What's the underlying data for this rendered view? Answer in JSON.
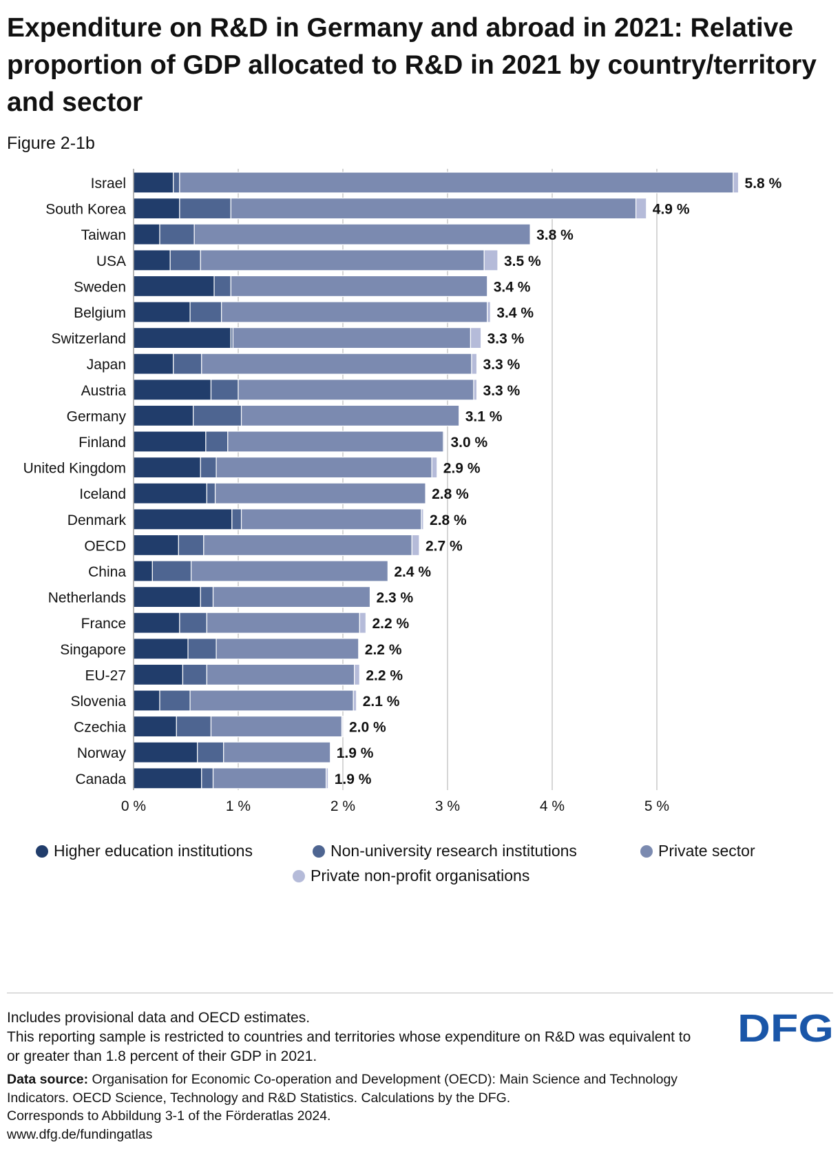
{
  "title": "Expenditure on R&D in Germany and abroad in 2021: Relative proportion of GDP allocated to R&D in 2021 by country/territory and sector",
  "subtitle": "Figure 2-1b",
  "colors": {
    "higher_education": "#213d6b",
    "non_university": "#4e6591",
    "private_sector": "#7b8ab0",
    "non_profit": "#b5bbd9",
    "grid": "#c8c8c8",
    "text": "#111111"
  },
  "chart_data": {
    "type": "bar",
    "orientation": "horizontal",
    "stacked": true,
    "xlim": [
      0,
      5.8
    ],
    "x_ticks": [
      0,
      1,
      2,
      3,
      4,
      5
    ],
    "x_tick_labels": [
      "0 %",
      "1 %",
      "2 %",
      "3 %",
      "4 %",
      "5 %"
    ],
    "grid": true,
    "legend_position": "bottom",
    "categories": [
      "Israel",
      "South Korea",
      "Taiwan",
      "USA",
      "Sweden",
      "Belgium",
      "Switzerland",
      "Japan",
      "Austria",
      "Germany",
      "Finland",
      "United Kingdom",
      "Iceland",
      "Denmark",
      "OECD",
      "China",
      "Netherlands",
      "France",
      "Singapore",
      "EU-27",
      "Slovenia",
      "Czechia",
      "Norway",
      "Canada"
    ],
    "series": [
      {
        "name": "Higher education institutions",
        "color_key": "higher_education",
        "values": [
          0.38,
          0.44,
          0.25,
          0.35,
          0.77,
          0.54,
          0.93,
          0.38,
          0.74,
          0.57,
          0.69,
          0.64,
          0.7,
          0.94,
          0.43,
          0.18,
          0.64,
          0.44,
          0.52,
          0.47,
          0.25,
          0.41,
          0.61,
          0.65
        ]
      },
      {
        "name": "Non-university research institutions",
        "color_key": "non_university",
        "values": [
          0.06,
          0.49,
          0.33,
          0.29,
          0.16,
          0.3,
          0.02,
          0.27,
          0.26,
          0.46,
          0.21,
          0.15,
          0.08,
          0.09,
          0.24,
          0.37,
          0.12,
          0.26,
          0.27,
          0.23,
          0.29,
          0.33,
          0.25,
          0.11
        ]
      },
      {
        "name": "Private sector",
        "color_key": "private_sector",
        "values": [
          5.29,
          3.87,
          3.21,
          2.71,
          2.45,
          2.54,
          2.27,
          2.58,
          2.25,
          2.08,
          2.06,
          2.06,
          2.01,
          1.72,
          1.99,
          1.88,
          1.5,
          1.46,
          1.36,
          1.41,
          1.56,
          1.25,
          1.02,
          1.08
        ]
      },
      {
        "name": "Private non-profit organisations",
        "color_key": "non_profit",
        "values": [
          0.05,
          0.1,
          0.0,
          0.13,
          0.0,
          0.03,
          0.1,
          0.05,
          0.03,
          0.0,
          0.01,
          0.05,
          0.0,
          0.02,
          0.07,
          0.0,
          0.0,
          0.06,
          0.0,
          0.05,
          0.03,
          0.01,
          0.0,
          0.02
        ]
      }
    ],
    "totals": [
      5.78,
      4.9,
      3.79,
      3.48,
      3.38,
      3.41,
      3.32,
      3.28,
      3.28,
      3.11,
      2.97,
      2.9,
      2.79,
      2.77,
      2.73,
      2.43,
      2.26,
      2.22,
      2.15,
      2.16,
      2.13,
      2.0,
      1.88,
      1.86
    ],
    "total_labels": [
      "5.8 %",
      "4.9 %",
      "3.8 %",
      "3.5 %",
      "3.4 %",
      "3.4 %",
      "3.3 %",
      "3.3 %",
      "3.3 %",
      "3.1 %",
      "3.0 %",
      "2.9 %",
      "2.8 %",
      "2.8 %",
      "2.7 %",
      "2.4 %",
      "2.3 %",
      "2.2 %",
      "2.2 %",
      "2.2 %",
      "2.1 %",
      "2.0 %",
      "1.9 %",
      "1.9 %"
    ]
  },
  "legend": [
    {
      "label": "Higher education institutions",
      "color_key": "higher_education"
    },
    {
      "label": "Non-university research institutions",
      "color_key": "non_university"
    },
    {
      "label": "Private sector",
      "color_key": "private_sector"
    },
    {
      "label": "Private non-profit organisations",
      "color_key": "non_profit"
    }
  ],
  "notes": {
    "line1": "Includes provisional data and OECD estimates.",
    "line2": "This reporting sample is restricted to countries and territories whose expenditure on R&D was equivalent to or greater than 1.8 percent of their GDP in 2021."
  },
  "source": {
    "label": "Data source:",
    "text": "Organisation for Economic Co-operation and Development (OECD): Main Science and Technology Indicators. OECD Science, Technology and R&D Statistics. Calculations by the DFG.",
    "correspondence": "Corresponds to Abbildung 3-1 of the Förderatlas 2024.",
    "url": "www.dfg.de/fundingatlas"
  },
  "logo": {
    "text": "DFG"
  }
}
